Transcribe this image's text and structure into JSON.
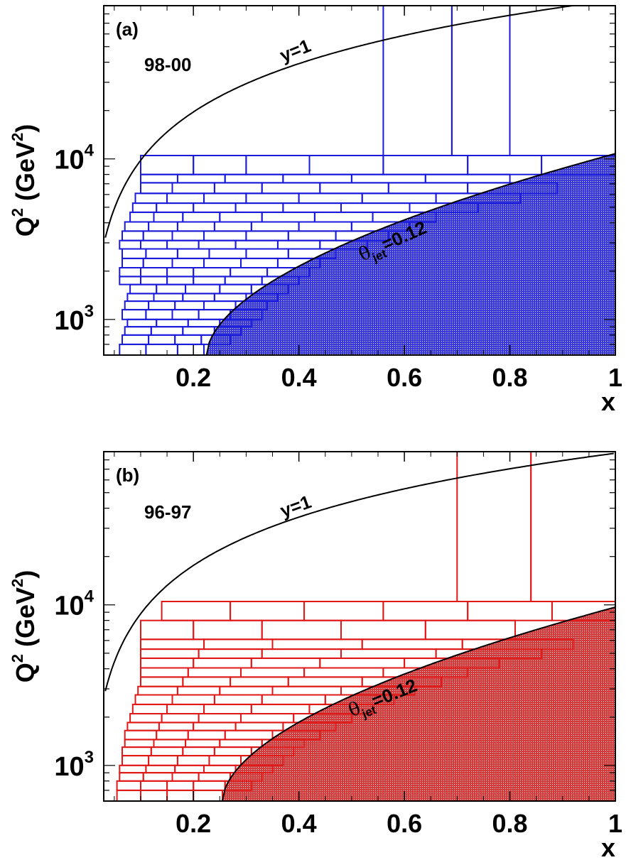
{
  "chart_data": [
    {
      "type": "heatmap",
      "panel_label": "(a)",
      "period": "98-00",
      "ylabel": "Q",
      "ylabel_exp": "2",
      "ylabel_unit_pre": " (GeV",
      "ylabel_unit_exp": "2",
      "ylabel_unit_post": ")",
      "xlabel": "x",
      "xlim": [
        0.03,
        1.0
      ],
      "ylim": [
        600,
        90000
      ],
      "y_scale": "log",
      "x_ticks": [
        "0.2",
        "0.4",
        "0.6",
        "0.8",
        "1"
      ],
      "x_tick_values": [
        0.2,
        0.4,
        0.6,
        0.8,
        1.0
      ],
      "y_ticks": [
        {
          "base": "10",
          "exp": "3",
          "value": 1000
        },
        {
          "base": "10",
          "exp": "4",
          "value": 10000
        }
      ],
      "color": "#1a1adc",
      "curves": [
        {
          "label": "y=1",
          "label_x": 0.37,
          "label_q2": 40000
        },
        {
          "label_theta": "θ",
          "label_sub": "jet",
          "label_rest": "=0.12",
          "label_x": 0.52,
          "label_q2": 2300
        }
      ],
      "curve_params": {
        "y1_s": 98000,
        "theta_a": 0.225,
        "theta_b": 0.27,
        "theta_c": 0.24,
        "q2_start": 600
      },
      "q2_edges": [
        600,
        700,
        800,
        900,
        1000,
        1150,
        1300,
        1450,
        1650,
        1850,
        2100,
        2400,
        2750,
        3100,
        3550,
        4050,
        4650,
        5300,
        6100,
        7100,
        8000,
        10500
      ],
      "row_x_edges": [
        [
          0.06,
          0.11,
          0.17,
          0.22
        ],
        [
          0.065,
          0.115,
          0.165,
          0.215,
          0.27
        ],
        [
          0.07,
          0.12,
          0.18,
          0.24,
          0.29
        ],
        [
          0.075,
          0.13,
          0.19,
          0.25,
          0.31
        ],
        [
          0.065,
          0.11,
          0.16,
          0.21,
          0.27,
          0.33
        ],
        [
          0.07,
          0.115,
          0.165,
          0.22,
          0.28,
          0.34
        ],
        [
          0.075,
          0.125,
          0.18,
          0.24,
          0.3,
          0.36
        ],
        [
          0.08,
          0.13,
          0.185,
          0.25,
          0.31,
          0.38
        ],
        [
          0.06,
          0.1,
          0.15,
          0.2,
          0.26,
          0.33,
          0.4
        ],
        [
          0.06,
          0.1,
          0.15,
          0.2,
          0.27,
          0.34,
          0.42
        ],
        [
          0.065,
          0.105,
          0.16,
          0.22,
          0.29,
          0.36,
          0.44
        ],
        [
          0.065,
          0.11,
          0.17,
          0.23,
          0.3,
          0.38,
          0.47
        ],
        [
          0.06,
          0.1,
          0.15,
          0.21,
          0.28,
          0.36,
          0.44,
          0.53
        ],
        [
          0.065,
          0.105,
          0.16,
          0.22,
          0.3,
          0.38,
          0.47,
          0.57
        ],
        [
          0.07,
          0.115,
          0.17,
          0.24,
          0.31,
          0.4,
          0.5,
          0.61
        ],
        [
          0.08,
          0.125,
          0.18,
          0.25,
          0.33,
          0.43,
          0.54,
          0.66
        ],
        [
          0.085,
          0.13,
          0.2,
          0.28,
          0.37,
          0.48,
          0.61,
          0.74
        ],
        [
          0.09,
          0.15,
          0.22,
          0.3,
          0.4,
          0.52,
          0.66,
          0.82
        ],
        [
          0.1,
          0.16,
          0.24,
          0.33,
          0.44,
          0.57,
          0.72,
          0.89
        ],
        [
          0.1,
          0.17,
          0.26,
          0.37,
          0.5,
          0.64,
          0.8
        ],
        [
          0.1,
          0.2,
          0.3,
          0.42,
          0.56,
          0.72,
          0.86,
          1.0
        ]
      ],
      "top_edges": [
        0.56,
        0.69,
        0.8,
        1.0
      ],
      "top_q2": [
        10500,
        90000
      ]
    },
    {
      "type": "heatmap",
      "panel_label": "(b)",
      "period": "96-97",
      "ylabel": "Q",
      "ylabel_exp": "2",
      "ylabel_unit_pre": " (GeV",
      "ylabel_unit_exp": "2",
      "ylabel_unit_post": ")",
      "xlabel": "x",
      "xlim": [
        0.03,
        1.0
      ],
      "ylim": [
        600,
        90000
      ],
      "y_scale": "log",
      "x_ticks": [
        "0.2",
        "0.4",
        "0.6",
        "0.8",
        "1"
      ],
      "x_tick_values": [
        0.2,
        0.4,
        0.6,
        0.8,
        1.0
      ],
      "y_ticks": [
        {
          "base": "10",
          "exp": "3",
          "value": 1000
        },
        {
          "base": "10",
          "exp": "4",
          "value": 10000
        }
      ],
      "color": "#e01818",
      "curves": [
        {
          "label": "y=1",
          "label_x": 0.37,
          "label_q2": 35000
        },
        {
          "label_theta": "θ",
          "label_sub": "jet",
          "label_rest": "=0.12",
          "label_x": 0.5,
          "label_q2": 2000
        }
      ],
      "curve_params": {
        "y1_s": 88000,
        "theta_a": 0.255,
        "theta_b": 0.28,
        "theta_c": 0.26,
        "q2_start": 600
      },
      "q2_edges": [
        600,
        700,
        800,
        900,
        1000,
        1150,
        1300,
        1450,
        1650,
        1850,
        2100,
        2400,
        2750,
        3100,
        3550,
        4050,
        4650,
        5300,
        6100,
        8000,
        10500
      ],
      "row_x_edges": [
        [
          0.055,
          0.1,
          0.15,
          0.2,
          0.255
        ],
        [
          0.055,
          0.1,
          0.15,
          0.2,
          0.26,
          0.31
        ],
        [
          0.06,
          0.105,
          0.16,
          0.21,
          0.27,
          0.33
        ],
        [
          0.06,
          0.11,
          0.165,
          0.22,
          0.28,
          0.35
        ],
        [
          0.065,
          0.115,
          0.17,
          0.23,
          0.29,
          0.37
        ],
        [
          0.065,
          0.12,
          0.18,
          0.24,
          0.31,
          0.39
        ],
        [
          0.07,
          0.125,
          0.185,
          0.25,
          0.33,
          0.41
        ],
        [
          0.07,
          0.13,
          0.19,
          0.26,
          0.35,
          0.44
        ],
        [
          0.075,
          0.135,
          0.2,
          0.28,
          0.37,
          0.47
        ],
        [
          0.08,
          0.14,
          0.21,
          0.29,
          0.39,
          0.5
        ],
        [
          0.085,
          0.15,
          0.22,
          0.31,
          0.42,
          0.54
        ],
        [
          0.09,
          0.16,
          0.24,
          0.33,
          0.45,
          0.58
        ],
        [
          0.095,
          0.17,
          0.25,
          0.35,
          0.48,
          0.62
        ],
        [
          0.1,
          0.18,
          0.27,
          0.38,
          0.52,
          0.67
        ],
        [
          0.1,
          0.19,
          0.29,
          0.41,
          0.56,
          0.72
        ],
        [
          0.1,
          0.2,
          0.31,
          0.44,
          0.6,
          0.78
        ],
        [
          0.1,
          0.21,
          0.33,
          0.48,
          0.66,
          0.86
        ],
        [
          0.1,
          0.22,
          0.35,
          0.52,
          0.71,
          0.92
        ],
        [
          0.1,
          0.2,
          0.33,
          0.48,
          0.64,
          0.81
        ],
        [
          0.14,
          0.27,
          0.41,
          0.56,
          0.72,
          0.88,
          1.0
        ]
      ],
      "top_edges": [
        0.7,
        0.84,
        1.0
      ],
      "top_q2": [
        10500,
        90000
      ]
    }
  ]
}
